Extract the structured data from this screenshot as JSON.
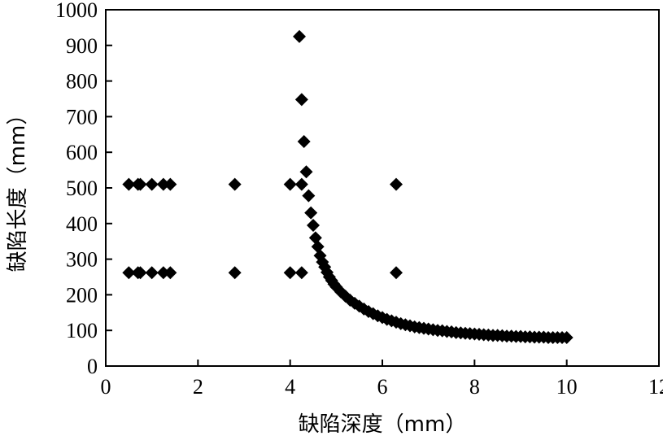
{
  "chart_data": {
    "type": "scatter",
    "title": "",
    "xlabel": "缺陷深度（mm）",
    "ylabel": "缺陷长度（mm）",
    "xlim": [
      0,
      12
    ],
    "ylim": [
      0,
      1000
    ],
    "x_ticks": [
      0,
      2,
      4,
      6,
      8,
      10,
      12
    ],
    "y_ticks": [
      0,
      100,
      200,
      300,
      400,
      500,
      600,
      700,
      800,
      900,
      1000
    ],
    "grid": false,
    "legend": "none",
    "marker": "diamond",
    "marker_color": "#000000",
    "series": [
      {
        "points": [
          [
            0.5,
            510
          ],
          [
            0.7,
            510
          ],
          [
            0.75,
            510
          ],
          [
            1.0,
            510
          ],
          [
            1.25,
            510
          ],
          [
            1.4,
            510
          ],
          [
            2.8,
            510
          ],
          [
            4.0,
            510
          ],
          [
            4.25,
            510
          ],
          [
            6.3,
            510
          ],
          [
            0.5,
            262
          ],
          [
            0.7,
            262
          ],
          [
            0.75,
            262
          ],
          [
            1.0,
            262
          ],
          [
            1.25,
            262
          ],
          [
            1.4,
            262
          ],
          [
            2.8,
            262
          ],
          [
            4.0,
            262
          ],
          [
            4.25,
            262
          ],
          [
            6.3,
            262
          ],
          [
            4.2,
            925
          ],
          [
            4.25,
            748
          ],
          [
            4.3,
            630
          ],
          [
            4.35,
            545
          ],
          [
            4.4,
            478
          ],
          [
            4.45,
            430
          ],
          [
            4.5,
            395
          ],
          [
            4.55,
            360
          ],
          [
            4.6,
            335
          ],
          [
            4.65,
            310
          ],
          [
            4.7,
            292
          ],
          [
            4.75,
            278
          ],
          [
            4.8,
            263
          ],
          [
            4.85,
            250
          ],
          [
            4.9,
            240
          ],
          [
            4.95,
            230
          ],
          [
            5.0,
            222
          ],
          [
            5.1,
            208
          ],
          [
            5.2,
            196
          ],
          [
            5.3,
            185
          ],
          [
            5.4,
            176
          ],
          [
            5.5,
            168
          ],
          [
            5.6,
            160
          ],
          [
            5.7,
            153
          ],
          [
            5.8,
            147
          ],
          [
            5.9,
            141
          ],
          [
            6.0,
            136
          ],
          [
            6.1,
            131
          ],
          [
            6.2,
            127
          ],
          [
            6.3,
            123
          ],
          [
            6.4,
            119
          ],
          [
            6.5,
            116
          ],
          [
            6.6,
            113
          ],
          [
            6.7,
            110
          ],
          [
            6.8,
            108
          ],
          [
            6.9,
            106
          ],
          [
            7.0,
            104
          ],
          [
            7.1,
            102
          ],
          [
            7.2,
            100
          ],
          [
            7.3,
            99
          ],
          [
            7.4,
            97
          ],
          [
            7.5,
            96
          ],
          [
            7.6,
            94
          ],
          [
            7.7,
            93
          ],
          [
            7.8,
            92
          ],
          [
            7.9,
            91
          ],
          [
            8.0,
            90
          ],
          [
            8.1,
            89
          ],
          [
            8.2,
            88
          ],
          [
            8.3,
            87
          ],
          [
            8.4,
            86
          ],
          [
            8.5,
            86
          ],
          [
            8.6,
            85
          ],
          [
            8.7,
            84
          ],
          [
            8.8,
            84
          ],
          [
            8.9,
            83
          ],
          [
            9.0,
            83
          ],
          [
            9.1,
            82
          ],
          [
            9.2,
            82
          ],
          [
            9.3,
            81
          ],
          [
            9.4,
            81
          ],
          [
            9.5,
            81
          ],
          [
            9.6,
            80
          ],
          [
            9.7,
            80
          ],
          [
            9.8,
            80
          ],
          [
            9.9,
            80
          ],
          [
            10.0,
            80
          ]
        ]
      }
    ]
  }
}
